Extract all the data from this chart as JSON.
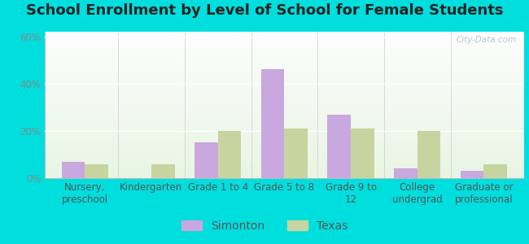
{
  "title": "School Enrollment by Level of School for Female Students",
  "categories": [
    "Nursery,\npreschool",
    "Kindergarten",
    "Grade 1 to 4",
    "Grade 5 to 8",
    "Grade 9 to\n12",
    "College\nundergrad",
    "Graduate or\nprofessional"
  ],
  "simonton": [
    7,
    0,
    15,
    46,
    27,
    4,
    3
  ],
  "texas": [
    6,
    6,
    20,
    21,
    21,
    20,
    6
  ],
  "simonton_color": "#c9a8e0",
  "texas_color": "#c8d4a0",
  "background_outer": "#00dede",
  "ylim": [
    0,
    62
  ],
  "yticks": [
    0,
    20,
    40,
    60
  ],
  "ytick_labels": [
    "0%",
    "20%",
    "40%",
    "60%"
  ],
  "bar_width": 0.35,
  "legend_labels": [
    "Simonton",
    "Texas"
  ],
  "title_fontsize": 13,
  "tick_fontsize": 8.5,
  "legend_fontsize": 10
}
